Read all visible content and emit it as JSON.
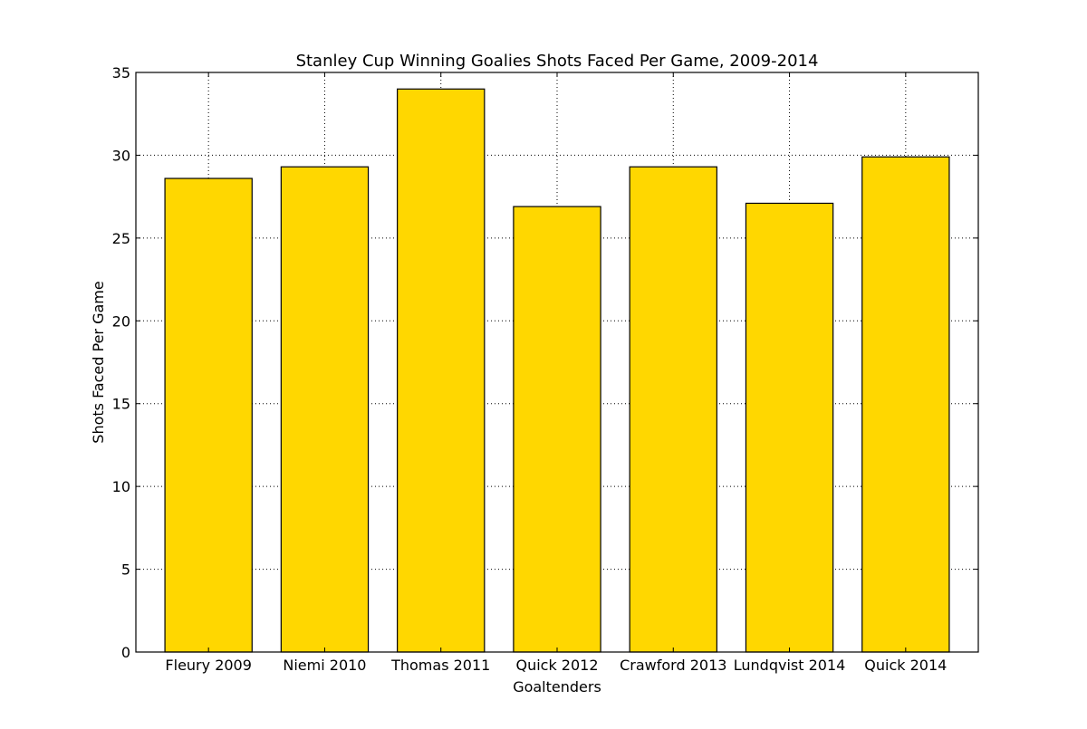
{
  "chart_data": {
    "type": "bar",
    "title": "Stanley Cup Winning Goalies Shots Faced Per Game, 2009-2014",
    "xlabel": "Goaltenders",
    "ylabel": "Shots Faced Per Game",
    "categories": [
      "Fleury 2009",
      "Niemi 2010",
      "Thomas 2011",
      "Quick 2012",
      "Crawford 2013",
      "Lundqvist 2014",
      "Quick 2014"
    ],
    "values": [
      28.6,
      29.3,
      34.0,
      26.9,
      29.3,
      27.1,
      29.9
    ],
    "ylim": [
      0,
      35
    ],
    "yticks": [
      0,
      5,
      10,
      15,
      20,
      25,
      30,
      35
    ],
    "grid": true,
    "bar_color": "#ffd700",
    "edge_color": "#000000"
  }
}
